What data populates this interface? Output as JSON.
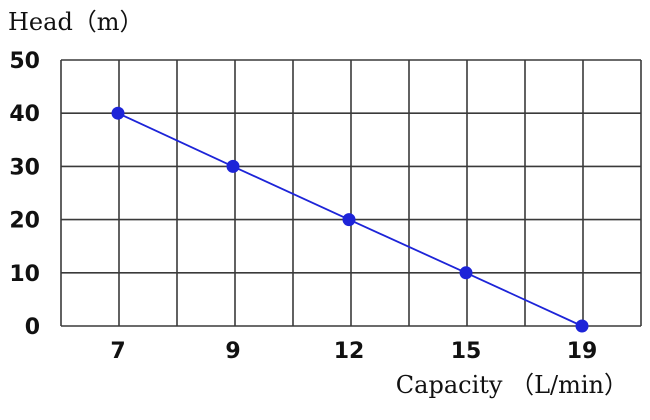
{
  "chart_data": {
    "type": "line",
    "title": "",
    "xlabel": "Capacity （L/min）",
    "ylabel": "Head（m）",
    "categories": [
      "7",
      "9",
      "12",
      "15",
      "19"
    ],
    "series": [
      {
        "values": [
          40,
          30,
          20,
          10,
          0
        ]
      }
    ],
    "y_ticks": [
      "0",
      "10",
      "20",
      "30",
      "40",
      "50"
    ],
    "ylim": [
      0,
      50
    ],
    "grid": true,
    "colors": {
      "line": "#1d24d8",
      "marker": "#1d24d8",
      "grid": "#3a3a3a",
      "text": "#111111"
    }
  }
}
